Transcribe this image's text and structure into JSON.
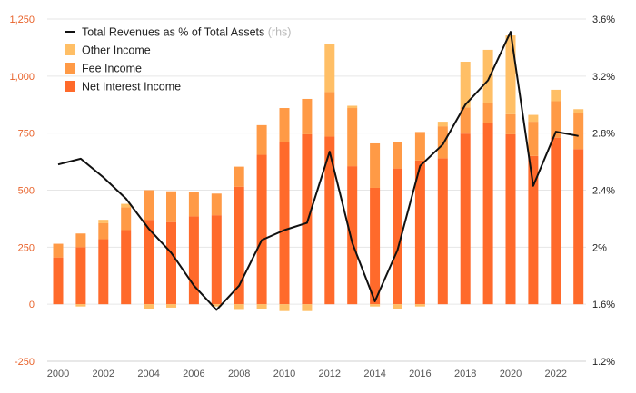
{
  "colors": {
    "net_interest": "#ff6a2b",
    "fee": "#ff9a46",
    "other": "#ffbf66",
    "line": "#111111",
    "grid": "#e6e6e6",
    "left_tick": "#e8622a"
  },
  "legend": [
    {
      "label": "Total Revenues as % of Total Assets",
      "suffix": "(rhs)",
      "kind": "line",
      "color": "#111111"
    },
    {
      "label": "Other Income",
      "kind": "box",
      "color": "#ffbf66"
    },
    {
      "label": "Fee Income",
      "kind": "box",
      "color": "#ff9a46"
    },
    {
      "label": "Net Interest Income",
      "kind": "box",
      "color": "#ff6a2b"
    }
  ],
  "chart_data": {
    "type": "bar",
    "stacked": true,
    "title": "",
    "xlabel": "",
    "ylabel": "",
    "x": [
      2000,
      2001,
      2002,
      2003,
      2004,
      2005,
      2006,
      2007,
      2008,
      2009,
      2010,
      2011,
      2012,
      2013,
      2014,
      2015,
      2016,
      2017,
      2018,
      2019,
      2020,
      2021,
      2022,
      2023
    ],
    "ylim": [
      -250,
      1250
    ],
    "yticks": [
      -250,
      0,
      250,
      500,
      750,
      1000,
      1250
    ],
    "ytick_labels": [
      "-250",
      "0",
      "250",
      "500",
      "750",
      "1,000",
      "1,250"
    ],
    "y2lim": [
      1.2,
      3.6
    ],
    "y2ticks": [
      1.2,
      1.6,
      2.0,
      2.4,
      2.8,
      3.2,
      3.6
    ],
    "y2tick_labels": [
      "1.2%",
      "1.6%",
      "2%",
      "2.4%",
      "2.8%",
      "3.2%",
      "3.6%"
    ],
    "xtick_labels": [
      "2000",
      "2002",
      "2004",
      "2006",
      "2008",
      "2010",
      "2012",
      "2014",
      "2016",
      "2018",
      "2020",
      "2022"
    ],
    "grid": "horizontal",
    "legend_position": "top-left",
    "series": [
      {
        "name": "Net Interest Income",
        "axis": "left",
        "values": [
          205,
          250,
          285,
          325,
          370,
          360,
          385,
          390,
          515,
          655,
          710,
          745,
          735,
          605,
          510,
          595,
          630,
          640,
          748,
          795,
          745,
          650,
          730,
          680
        ]
      },
      {
        "name": "Fee Income",
        "axis": "left",
        "values": [
          60,
          60,
          70,
          100,
          130,
          135,
          105,
          95,
          88,
          130,
          150,
          155,
          195,
          255,
          195,
          115,
          125,
          140,
          115,
          85,
          88,
          150,
          160,
          160
        ]
      },
      {
        "name": "Other Income",
        "axis": "left",
        "values": [
          0,
          -10,
          15,
          15,
          -20,
          -15,
          0,
          -10,
          -25,
          -20,
          -30,
          -30,
          210,
          10,
          -10,
          -20,
          -10,
          20,
          200,
          235,
          345,
          30,
          50,
          15
        ]
      },
      {
        "name": "Total Revenues as % of Total Assets",
        "axis": "right",
        "type": "line",
        "values": [
          2.58,
          2.62,
          2.49,
          2.34,
          2.13,
          1.96,
          1.73,
          1.56,
          1.73,
          2.05,
          2.12,
          2.17,
          2.67,
          2.03,
          1.62,
          1.98,
          2.57,
          2.72,
          3.0,
          3.17,
          3.51,
          2.43,
          2.81,
          2.78
        ]
      }
    ]
  }
}
